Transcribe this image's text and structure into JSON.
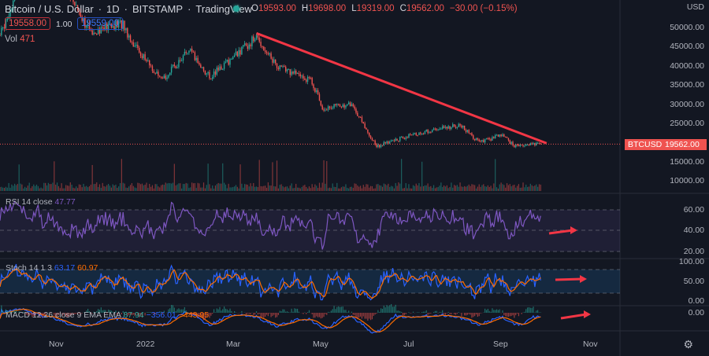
{
  "header": {
    "symbol": "Bitcoin / U.S. Dollar",
    "interval": "1D",
    "exchange": "BITSTAMP",
    "source": "TradingView",
    "ohlc": {
      "o_label": "O",
      "o": "19593.00",
      "h_label": "H",
      "h": "19698.00",
      "l_label": "L",
      "l": "19319.00",
      "c_label": "C",
      "c": "19562.00",
      "change": "−30.00 (−0.15%)"
    },
    "sell_price": "19558.00",
    "spread": "1.00",
    "buy_price": "19559.00",
    "currency": "USD"
  },
  "volume": {
    "label": "Vol",
    "value": "471"
  },
  "rsi": {
    "label": "RSI 14 close",
    "value": "47.77"
  },
  "stoch": {
    "label": "Stoch 14 1 3",
    "k": "63.17",
    "d": "60.97"
  },
  "macd": {
    "label": "MACD 12 26 close 9 EMA EMA",
    "hist": "87.94",
    "macd": "−356.01",
    "signal": "−443.95"
  },
  "price_axis": [
    "50000.00",
    "45000.00",
    "40000.00",
    "35000.00",
    "30000.00",
    "25000.00",
    "20000.00",
    "15000.00",
    "10000.00"
  ],
  "rsi_axis": [
    "60.00",
    "40.00",
    "20.00"
  ],
  "stoch_axis": [
    "100.00",
    "50.00",
    "0.00"
  ],
  "macd_axis": [
    "0.00"
  ],
  "time_axis": [
    "Nov",
    "2022",
    "Mar",
    "May",
    "Jul",
    "Sep",
    "Nov"
  ],
  "last_price_tag": {
    "symbol": "BTCUSD",
    "price": "19562.00"
  },
  "colors": {
    "up": "#26a69a",
    "down": "#ef5350",
    "trendline": "#f23645",
    "rsi": "#7e57c2",
    "stoch_k": "#2962ff",
    "stoch_d": "#ff6d00",
    "background": "#131722"
  },
  "chart_data": {
    "type": "candlestick",
    "approx_closes": [
      [
        "2021-10-04",
        48000
      ],
      [
        "2021-10-20",
        64000
      ],
      [
        "2021-11-10",
        67000
      ],
      [
        "2021-12-04",
        49000
      ],
      [
        "2021-12-27",
        51000
      ],
      [
        "2022-01-01",
        47000
      ],
      [
        "2022-01-22",
        36000
      ],
      [
        "2022-02-10",
        44000
      ],
      [
        "2022-02-24",
        37000
      ],
      [
        "2022-03-28",
        47500
      ],
      [
        "2022-04-11",
        40000
      ],
      [
        "2022-05-05",
        36000
      ],
      [
        "2022-05-12",
        29000
      ],
      [
        "2022-06-01",
        30000
      ],
      [
        "2022-06-13",
        22000
      ],
      [
        "2022-06-18",
        19000
      ],
      [
        "2022-07-08",
        21500
      ],
      [
        "2022-07-30",
        23500
      ],
      [
        "2022-08-14",
        24500
      ],
      [
        "2022-08-27",
        20000
      ],
      [
        "2022-09-12",
        22000
      ],
      [
        "2022-09-20",
        19000
      ],
      [
        "2022-09-28",
        19562
      ]
    ],
    "trendline": [
      [
        "2022-03-28",
        48500
      ],
      [
        "2022-10-12",
        19800
      ]
    ]
  }
}
